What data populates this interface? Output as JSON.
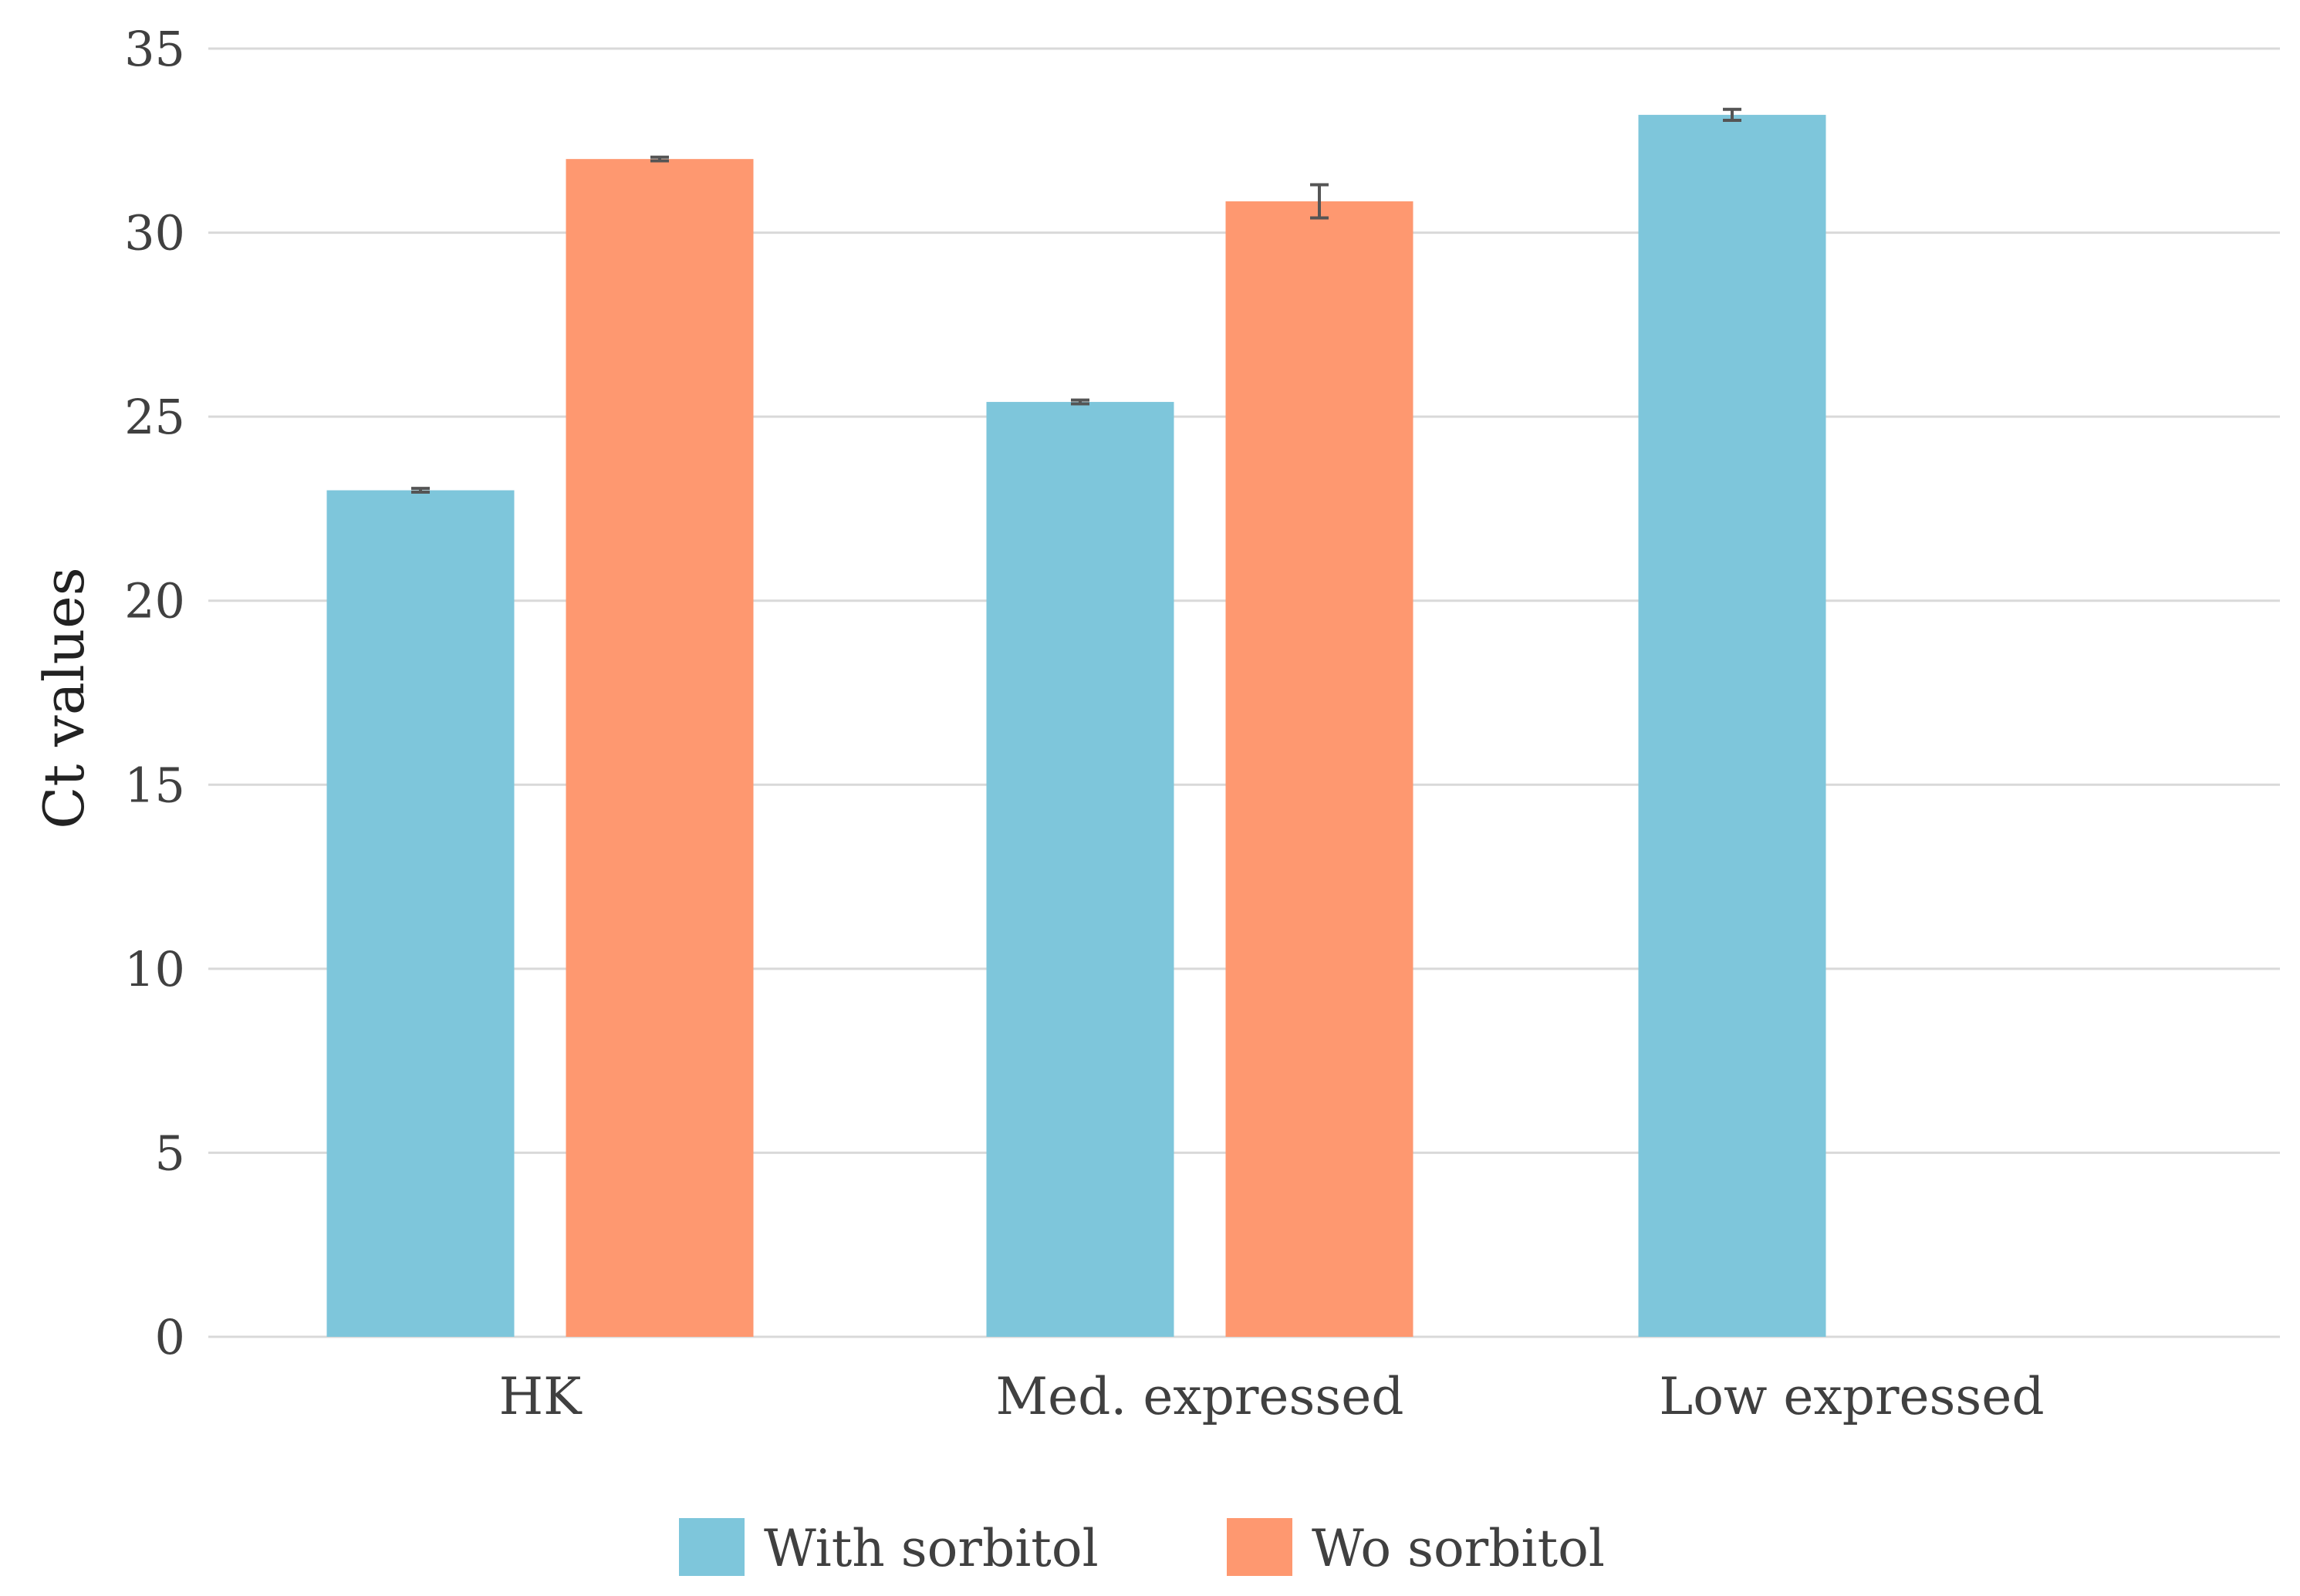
{
  "chart_data": {
    "type": "bar",
    "title": "",
    "xlabel": "",
    "ylabel": "Ct values",
    "ylim": [
      0,
      35
    ],
    "yticks": [
      0,
      5,
      10,
      15,
      20,
      25,
      30,
      35
    ],
    "grid": true,
    "legend_position": "bottom",
    "categories": [
      "HK",
      "Med. expressed",
      "Low expressed"
    ],
    "series": [
      {
        "name": "With sorbitol",
        "color": "#7ec6db",
        "values": [
          23.0,
          25.4,
          33.2
        ],
        "errors": [
          0.05,
          0.05,
          0.15
        ]
      },
      {
        "name": "Wo sorbitol",
        "color": "#fe9870",
        "values": [
          32.0,
          30.85,
          null
        ],
        "errors": [
          0.05,
          0.45,
          null
        ]
      }
    ]
  }
}
